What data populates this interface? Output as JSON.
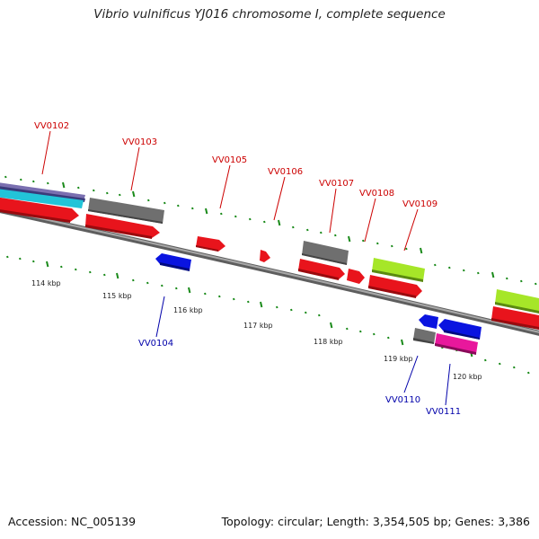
{
  "header": {
    "title": "Vibrio vulnificus YJ016 chromosome I, complete sequence"
  },
  "footer": {
    "accession": "Accession: NC_005139",
    "summary": "Topology: circular; Length: 3,354,505 bp; Genes: 3,386"
  },
  "scale": {
    "ticks": [
      "114 kbp",
      "115 kbp",
      "116 kbp",
      "117 kbp",
      "118 kbp",
      "119 kbp",
      "120 kbp"
    ]
  },
  "genes": {
    "forward": [
      "VV0102",
      "VV0103",
      "VV0105",
      "VV0106",
      "VV0107",
      "VV0108",
      "VV0109"
    ],
    "reverse": [
      "VV0104",
      "VV0110",
      "VV0111"
    ]
  },
  "colors": {
    "cds": "#e8141c",
    "gene_gray": "#6f6f6f",
    "reverse_blue": "#0a14e0",
    "rrna_green": "#a6e628",
    "magenta": "#e8189c",
    "tick_green": "#1a8a1a",
    "backbone": "#7a7a7a",
    "label_red": "#cc0000",
    "label_blue": "#0000aa"
  }
}
